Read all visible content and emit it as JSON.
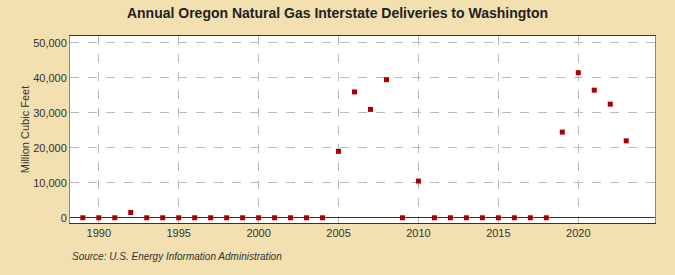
{
  "chart_data": {
    "type": "scatter",
    "title": "Annual Oregon Natural Gas Interstate Deliveries to Washington",
    "ylabel": "Million Cubic Feet",
    "source": "Source: U.S. Energy Information Administration",
    "x": [
      1989,
      1990,
      1991,
      1992,
      1993,
      1994,
      1995,
      1996,
      1997,
      1998,
      1999,
      2000,
      2001,
      2002,
      2003,
      2004,
      2005,
      2006,
      2007,
      2008,
      2009,
      2010,
      2011,
      2012,
      2013,
      2014,
      2015,
      2016,
      2017,
      2018,
      2019,
      2020,
      2021,
      2022,
      2023
    ],
    "values": [
      0,
      0,
      0,
      1500,
      0,
      0,
      0,
      0,
      0,
      0,
      0,
      0,
      0,
      0,
      0,
      0,
      19000,
      36000,
      31000,
      39500,
      0,
      10500,
      0,
      0,
      0,
      0,
      0,
      0,
      0,
      0,
      24500,
      41500,
      36500,
      32500,
      22000
    ],
    "color": "#aa0000",
    "marker": "square",
    "xlim": [
      1988.2,
      2024.8
    ],
    "xticks": [
      1990,
      1995,
      2000,
      2005,
      2010,
      2015,
      2020
    ],
    "ylim": [
      -1500,
      52000
    ],
    "yticks": [
      0,
      {
        "value": 10000,
        "label": "10,000"
      },
      {
        "value": 20000,
        "label": "20,000"
      },
      {
        "value": 30000,
        "label": "30,000"
      },
      {
        "value": 40000,
        "label": "40,000"
      },
      {
        "value": 50000,
        "label": "50,000"
      }
    ],
    "grid": true
  }
}
